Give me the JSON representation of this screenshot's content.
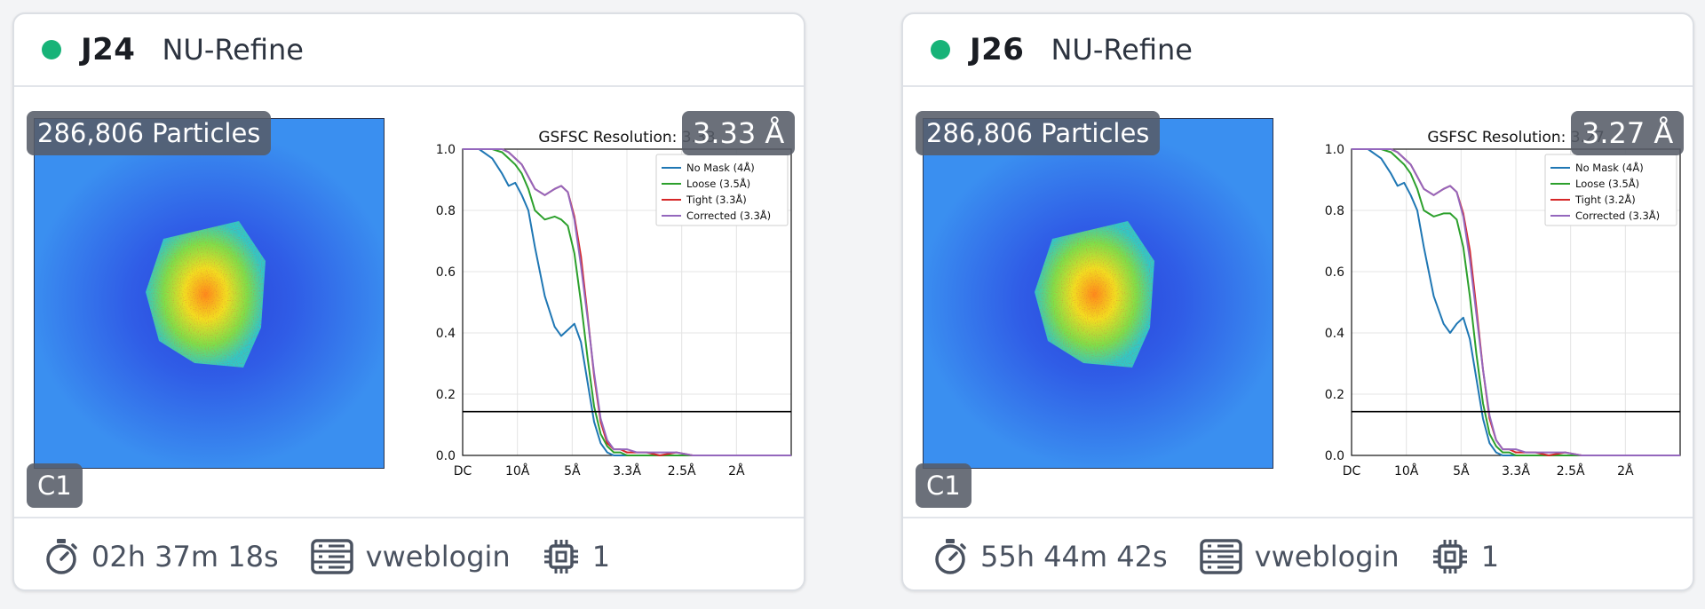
{
  "colors": {
    "status": "#17b378",
    "no_mask": "#1f77b4",
    "loose": "#2ca02c",
    "tight": "#d62728",
    "corrected": "#9467bd"
  },
  "icons": {
    "time": "stopwatch-icon",
    "user": "server-list-icon",
    "gpu": "cpu-chip-icon"
  },
  "cards": [
    {
      "job_id": "J24",
      "job_type": "NU-Refine",
      "particles": "286,806 Particles",
      "symmetry": "C1",
      "resolution": "3.33 Å",
      "elapsed": "02h 37m 18s",
      "user": "vweblogin",
      "gpus": "1",
      "chart_data": {
        "type": "line",
        "title": "GSFSC Resolution: 3.33",
        "xticks": [
          "DC",
          "10Å",
          "5Å",
          "3.3Å",
          "2.5Å",
          "2Å"
        ],
        "yticks": [
          "0.0",
          "0.2",
          "0.4",
          "0.6",
          "0.8",
          "1.0"
        ],
        "ylim": [
          0,
          1
        ],
        "threshold": 0.143,
        "grid": true,
        "legend_position": "top-right",
        "x": [
          0,
          0.05,
          0.09,
          0.12,
          0.14,
          0.16,
          0.18,
          0.2,
          0.22,
          0.25,
          0.28,
          0.3,
          0.32,
          0.34,
          0.36,
          0.38,
          0.4,
          0.42,
          0.44,
          0.46,
          0.48,
          0.5,
          0.53,
          0.56,
          0.6,
          0.65,
          0.7,
          0.8,
          0.9,
          1.0
        ],
        "series": [
          {
            "name": "No Mask (4Å)",
            "color_key": "no_mask",
            "values": [
              1.0,
              1.0,
              0.97,
              0.92,
              0.88,
              0.89,
              0.85,
              0.8,
              0.68,
              0.52,
              0.42,
              0.39,
              0.41,
              0.43,
              0.37,
              0.24,
              0.11,
              0.04,
              0.01,
              0.0,
              0.0,
              0.0,
              0.0,
              0.0,
              0.0,
              0.0,
              0.0,
              0.0,
              0.0,
              0.0
            ]
          },
          {
            "name": "Loose (3.5Å)",
            "color_key": "loose",
            "values": [
              1.0,
              1.0,
              1.0,
              0.99,
              0.97,
              0.95,
              0.92,
              0.87,
              0.8,
              0.77,
              0.78,
              0.77,
              0.75,
              0.66,
              0.5,
              0.32,
              0.16,
              0.07,
              0.03,
              0.01,
              0.01,
              0.0,
              0.0,
              0.0,
              0.0,
              0.0,
              0.0,
              0.0,
              0.0,
              0.0
            ]
          },
          {
            "name": "Tight (3.3Å)",
            "color_key": "tight",
            "values": [
              1.0,
              1.0,
              1.0,
              1.0,
              0.99,
              0.97,
              0.95,
              0.91,
              0.87,
              0.85,
              0.87,
              0.88,
              0.86,
              0.78,
              0.65,
              0.46,
              0.26,
              0.11,
              0.04,
              0.02,
              0.02,
              0.01,
              0.01,
              0.01,
              0.0,
              0.01,
              0.0,
              0.0,
              0.0,
              0.0
            ]
          },
          {
            "name": "Corrected (3.3Å)",
            "color_key": "corrected",
            "values": [
              1.0,
              1.0,
              1.0,
              1.0,
              0.99,
              0.97,
              0.95,
              0.91,
              0.87,
              0.85,
              0.87,
              0.88,
              0.86,
              0.77,
              0.62,
              0.45,
              0.27,
              0.12,
              0.05,
              0.02,
              0.02,
              0.02,
              0.01,
              0.01,
              0.01,
              0.01,
              0.0,
              0.0,
              0.0,
              0.0
            ]
          }
        ]
      }
    },
    {
      "job_id": "J26",
      "job_type": "NU-Refine",
      "particles": "286,806 Particles",
      "symmetry": "C1",
      "resolution": "3.27 Å",
      "elapsed": "55h 44m 42s",
      "user": "vweblogin",
      "gpus": "1",
      "chart_data": {
        "type": "line",
        "title": "GSFSC Resolution: 3.27",
        "xticks": [
          "DC",
          "10Å",
          "5Å",
          "3.3Å",
          "2.5Å",
          "2Å"
        ],
        "yticks": [
          "0.0",
          "0.2",
          "0.4",
          "0.6",
          "0.8",
          "1.0"
        ],
        "ylim": [
          0,
          1
        ],
        "threshold": 0.143,
        "grid": true,
        "legend_position": "top-right",
        "x": [
          0,
          0.05,
          0.09,
          0.12,
          0.14,
          0.16,
          0.18,
          0.2,
          0.22,
          0.25,
          0.28,
          0.3,
          0.32,
          0.34,
          0.36,
          0.38,
          0.4,
          0.42,
          0.44,
          0.46,
          0.48,
          0.5,
          0.53,
          0.56,
          0.6,
          0.65,
          0.7,
          0.8,
          0.9,
          1.0
        ],
        "series": [
          {
            "name": "No Mask (4Å)",
            "color_key": "no_mask",
            "values": [
              1.0,
              1.0,
              0.97,
              0.92,
              0.88,
              0.89,
              0.85,
              0.8,
              0.68,
              0.52,
              0.43,
              0.4,
              0.43,
              0.45,
              0.38,
              0.25,
              0.12,
              0.04,
              0.01,
              0.0,
              0.0,
              0.0,
              0.0,
              0.0,
              0.0,
              0.0,
              0.0,
              0.0,
              0.0,
              0.0
            ]
          },
          {
            "name": "Loose (3.5Å)",
            "color_key": "loose",
            "values": [
              1.0,
              1.0,
              1.0,
              0.99,
              0.97,
              0.95,
              0.92,
              0.87,
              0.8,
              0.78,
              0.79,
              0.79,
              0.77,
              0.68,
              0.52,
              0.33,
              0.17,
              0.07,
              0.03,
              0.01,
              0.01,
              0.0,
              0.0,
              0.0,
              0.0,
              0.0,
              0.0,
              0.0,
              0.0,
              0.0
            ]
          },
          {
            "name": "Tight (3.2Å)",
            "color_key": "tight",
            "values": [
              1.0,
              1.0,
              1.0,
              1.0,
              0.99,
              0.97,
              0.95,
              0.91,
              0.87,
              0.85,
              0.87,
              0.88,
              0.86,
              0.79,
              0.67,
              0.48,
              0.28,
              0.12,
              0.05,
              0.02,
              0.02,
              0.01,
              0.01,
              0.01,
              0.0,
              0.01,
              0.0,
              0.0,
              0.0,
              0.0
            ]
          },
          {
            "name": "Corrected (3.3Å)",
            "color_key": "corrected",
            "values": [
              1.0,
              1.0,
              1.0,
              1.0,
              0.99,
              0.97,
              0.95,
              0.91,
              0.87,
              0.85,
              0.87,
              0.88,
              0.86,
              0.78,
              0.64,
              0.46,
              0.28,
              0.13,
              0.05,
              0.02,
              0.02,
              0.02,
              0.01,
              0.01,
              0.01,
              0.01,
              0.0,
              0.0,
              0.0,
              0.0
            ]
          }
        ]
      }
    }
  ]
}
